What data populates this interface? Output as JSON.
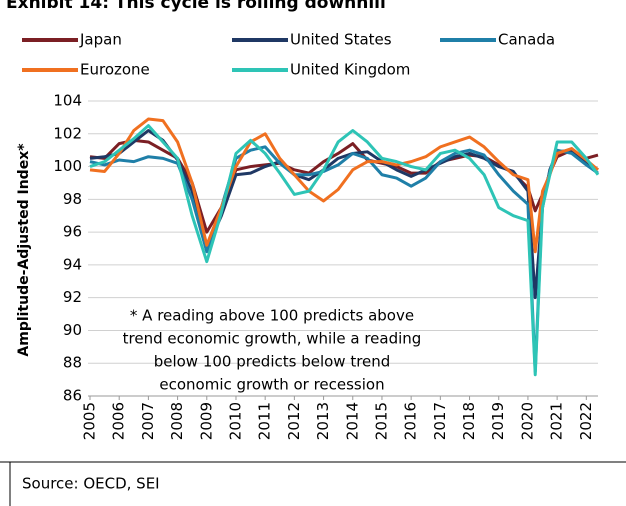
{
  "chart_data": {
    "type": "line",
    "title": "Exhibit 14: This cycle is rolling downhill",
    "y_label": "Amplitude-Adjusted Index*",
    "annotation": [
      "* A reading above 100 predicts above",
      "trend economic growth, while a reading",
      "below 100 predicts below trend",
      "economic growth or recession"
    ],
    "source": "Source: OECD, SEI",
    "x": [
      2005,
      2005.5,
      2006,
      2006.5,
      2007,
      2007.5,
      2008,
      2008.5,
      2009,
      2009.5,
      2010,
      2010.5,
      2011,
      2011.5,
      2012,
      2012.5,
      2013,
      2013.5,
      2014,
      2014.5,
      2015,
      2015.5,
      2016,
      2016.5,
      2017,
      2017.5,
      2018,
      2018.5,
      2019,
      2019.5,
      2020,
      2020.25,
      2020.5,
      2020.75,
      2021,
      2021.5,
      2022,
      2022.4
    ],
    "series": [
      {
        "name": "Japan",
        "color": "#7b1f24",
        "values": [
          100.6,
          100.5,
          101.4,
          101.6,
          101.5,
          101.0,
          100.5,
          99.0,
          96.0,
          97.5,
          99.8,
          100.0,
          100.1,
          100.2,
          99.8,
          99.6,
          100.3,
          100.8,
          101.4,
          100.4,
          100.2,
          100.0,
          99.6,
          99.6,
          100.3,
          100.5,
          100.7,
          100.6,
          100.1,
          99.6,
          98.7,
          97.3,
          98.3,
          99.6,
          100.6,
          101.0,
          100.5,
          100.7
        ]
      },
      {
        "name": "United States",
        "color": "#1f3864",
        "values": [
          100.5,
          100.6,
          100.8,
          101.5,
          102.2,
          101.6,
          100.4,
          98.5,
          95.0,
          97.0,
          99.5,
          99.6,
          100.0,
          100.3,
          99.5,
          99.2,
          99.8,
          100.5,
          100.8,
          100.9,
          100.3,
          99.8,
          99.4,
          99.8,
          100.2,
          100.6,
          100.8,
          100.5,
          100.0,
          99.7,
          98.5,
          92.0,
          97.5,
          99.8,
          100.9,
          101.0,
          100.3,
          99.8
        ]
      },
      {
        "name": "Canada",
        "color": "#1f7fa8",
        "values": [
          100.3,
          100.1,
          100.4,
          100.3,
          100.6,
          100.5,
          100.2,
          98.0,
          94.8,
          97.5,
          100.5,
          101.0,
          101.2,
          100.2,
          99.5,
          99.5,
          99.7,
          100.1,
          100.8,
          100.5,
          99.5,
          99.3,
          98.8,
          99.3,
          100.3,
          100.8,
          101.0,
          100.7,
          99.5,
          98.5,
          97.7,
          87.5,
          98.0,
          99.7,
          101.0,
          100.8,
          100.1,
          99.6
        ]
      },
      {
        "name": "Eurozone",
        "color": "#f07020",
        "values": [
          99.8,
          99.7,
          100.8,
          102.2,
          102.9,
          102.8,
          101.5,
          99.0,
          95.2,
          97.5,
          100.0,
          101.5,
          102.0,
          100.5,
          99.5,
          98.5,
          97.9,
          98.6,
          99.8,
          100.3,
          100.3,
          100.1,
          100.3,
          100.6,
          101.2,
          101.5,
          101.8,
          101.2,
          100.3,
          99.5,
          99.2,
          94.8,
          98.5,
          99.5,
          100.8,
          101.1,
          100.4,
          99.8
        ]
      },
      {
        "name": "United Kingdom",
        "color": "#2ec4b6",
        "values": [
          100.0,
          100.3,
          101.0,
          101.7,
          102.5,
          101.5,
          100.5,
          97.0,
          94.2,
          97.2,
          100.8,
          101.6,
          100.8,
          99.6,
          98.3,
          98.5,
          99.8,
          101.5,
          102.2,
          101.5,
          100.5,
          100.3,
          100.0,
          99.8,
          100.8,
          101.0,
          100.5,
          99.5,
          97.5,
          97.0,
          96.7,
          87.3,
          97.5,
          99.5,
          101.5,
          101.5,
          100.5,
          99.5
        ]
      }
    ],
    "xlim": [
      2005,
      2022.4
    ],
    "xticks": [
      2005,
      2006,
      2007,
      2008,
      2009,
      2010,
      2011,
      2012,
      2013,
      2014,
      2015,
      2016,
      2017,
      2018,
      2019,
      2020,
      2021,
      2022
    ],
    "ylim": [
      86,
      104
    ],
    "yticks": [
      86,
      88,
      90,
      92,
      94,
      96,
      98,
      100,
      102,
      104
    ],
    "grid": true
  }
}
